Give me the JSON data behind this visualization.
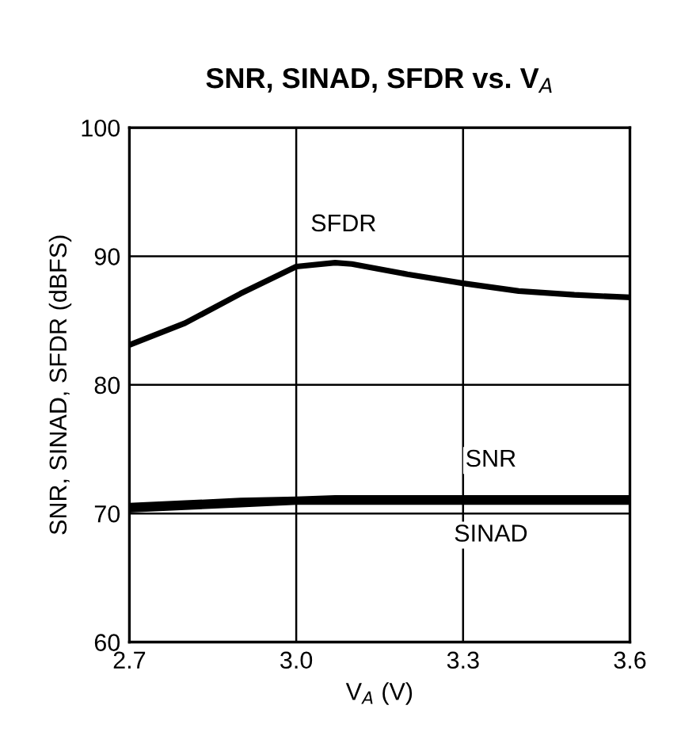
{
  "chart_data": {
    "type": "line",
    "title": "SNR, SINAD, SFDR vs. V$_{A}$",
    "xlabel": "V$_{A}$ (V)",
    "ylabel": "SNR, SINAD, SFDR (dBFS)",
    "x": [
      2.7,
      2.8,
      2.9,
      3.0,
      3.07,
      3.1,
      3.2,
      3.3,
      3.4,
      3.5,
      3.6
    ],
    "series": [
      {
        "name": "SFDR",
        "color": "#000000",
        "values": [
          83.1,
          84.8,
          87.1,
          89.2,
          89.5,
          89.4,
          88.6,
          87.9,
          87.3,
          87.0,
          86.8
        ]
      },
      {
        "name": "SNR",
        "color": "#000000",
        "values": [
          70.6,
          70.8,
          71.0,
          71.1,
          71.2,
          71.2,
          71.2,
          71.2,
          71.2,
          71.2,
          71.2
        ]
      },
      {
        "name": "SINAD",
        "color": "#000000",
        "values": [
          70.3,
          70.5,
          70.7,
          70.9,
          70.9,
          70.9,
          70.9,
          70.9,
          70.9,
          70.9,
          70.9
        ]
      }
    ],
    "xlim": [
      2.7,
      3.6
    ],
    "xticks": [
      {
        "value": 2.7,
        "label": "2.7"
      },
      {
        "value": 3.0,
        "label": "3.0"
      },
      {
        "value": 3.3,
        "label": "3.3"
      },
      {
        "value": 3.6,
        "label": "3.6"
      }
    ],
    "ylim": [
      60,
      100
    ],
    "yticks": [
      60,
      70,
      80,
      90,
      100
    ],
    "grid": true,
    "legend": false
  }
}
